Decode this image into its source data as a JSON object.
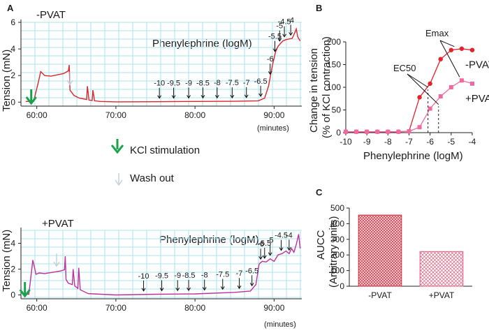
{
  "panel_labels": {
    "a": "A",
    "b": "B",
    "c": "C"
  },
  "colors": {
    "trace_top": "#d9262a",
    "trace_bottom": "#c0309a",
    "minus_pvat": "#e8202a",
    "plus_pvat": "#f06aa0",
    "kcl_arrow": "#1aa24a",
    "washout_arrow": "#c6d2d8",
    "grid": "#a9e3ee"
  },
  "legend_area": {
    "kcl_label": "KCl stimulation",
    "washout_label": "Wash out"
  },
  "chart_data": [
    {
      "id": "trace_minus",
      "type": "line",
      "condition_label": "-PVAT",
      "phenyl_label": "Phenylephrine (logM)",
      "ylabel": "Tension (mN)",
      "xunit": "(minutes)",
      "xlim": [
        58,
        93.5
      ],
      "ylim": [
        -0.3,
        6
      ],
      "xticks": [
        "60:00",
        "70:00",
        "80:00",
        "90:00"
      ],
      "xtick_values": [
        60,
        70,
        80,
        90
      ],
      "yticks": [
        "0",
        "2",
        "4",
        "6"
      ],
      "ytick_values": [
        0,
        2,
        4,
        6
      ],
      "grid": true,
      "doses": [
        "-10",
        "-9.5",
        "-9",
        "-8.5",
        "-8",
        "-7.5",
        "-7",
        "-6.5",
        "-6",
        "-5.5",
        "-5",
        "-4.5",
        "-4"
      ],
      "dose_times": [
        75.5,
        77.3,
        79.2,
        81.0,
        82.8,
        84.7,
        86.5,
        88.3,
        89.5,
        90.1,
        90.7,
        91.3,
        92.1
      ],
      "kcl_time": 59.3,
      "washout_time": 64.2,
      "x": [
        58.6,
        59.6,
        60.2,
        60.5,
        61.0,
        61.8,
        62.6,
        63.4,
        64.0,
        64.1,
        64.2,
        64.7,
        65.4,
        66.3,
        66.4,
        66.6,
        67.0,
        67.1,
        67.3,
        68.0,
        70.0,
        75.0,
        80.0,
        85.0,
        88.0,
        88.8,
        89.3,
        89.8,
        90.2,
        90.5,
        90.8,
        91.1,
        91.5,
        91.9,
        92.3,
        92.6,
        92.8,
        93.0,
        93.3
      ],
      "y": [
        0.05,
        0.05,
        1.5,
        2.3,
        2.0,
        1.95,
        2.05,
        2.15,
        2.35,
        2.8,
        0.9,
        0.5,
        0.3,
        0.2,
        1.2,
        0.15,
        0.12,
        0.9,
        0.1,
        0.05,
        0.02,
        0.03,
        0.05,
        0.06,
        0.1,
        0.3,
        1.2,
        2.8,
        3.8,
        4.2,
        4.4,
        4.6,
        4.7,
        4.75,
        4.8,
        5.2,
        5.5,
        4.9,
        4.6
      ]
    },
    {
      "id": "trace_plus",
      "type": "line",
      "condition_label": "+PVAT",
      "phenyl_label": "Phenylephrine (logM)",
      "ylabel": "Tension (mN)",
      "xunit": "(minutes)",
      "xlim": [
        58,
        93.5
      ],
      "ylim": [
        -0.3,
        5
      ],
      "xticks": [
        "60:00",
        "70:00",
        "80:00",
        "90:00"
      ],
      "xtick_values": [
        60,
        70,
        80,
        90
      ],
      "yticks": [
        "0",
        "2",
        "4"
      ],
      "ytick_values": [
        0,
        2,
        4
      ],
      "grid": true,
      "doses": [
        "-10",
        "-9.5",
        "-9",
        "-8.5",
        "-8",
        "-7.5",
        "-7",
        "-6.5",
        "-6",
        "-5.5",
        "-5",
        "-4.5",
        "-4"
      ],
      "dose_times": [
        73.5,
        75.8,
        77.8,
        79.2,
        81.2,
        83.5,
        85.6,
        87.2,
        88.3,
        88.8,
        89.5,
        90.9,
        91.9
      ],
      "kcl_time": 58.5,
      "washout_time": 62.5,
      "x": [
        58.6,
        59.0,
        59.5,
        59.9,
        60.3,
        61.0,
        62.0,
        63.0,
        63.5,
        63.6,
        63.7,
        64.0,
        64.5,
        64.6,
        64.8,
        65.2,
        65.3,
        65.5,
        66.5,
        70.0,
        75.0,
        80.0,
        85.0,
        87.0,
        87.7,
        88.1,
        88.5,
        89.0,
        89.5,
        90.0,
        90.5,
        91.0,
        91.5,
        91.9,
        92.2,
        92.5,
        92.8,
        93.1,
        93.3
      ],
      "y": [
        0.05,
        0.05,
        2.7,
        1.6,
        1.7,
        1.65,
        1.75,
        1.85,
        1.95,
        3.0,
        1.2,
        0.9,
        0.8,
        2.0,
        0.7,
        0.5,
        2.1,
        0.4,
        0.1,
        0.0,
        0.05,
        0.08,
        0.2,
        0.3,
        0.8,
        2.4,
        2.6,
        2.55,
        2.8,
        2.6,
        3.1,
        3.2,
        3.4,
        3.2,
        3.6,
        3.3,
        3.9,
        4.7,
        3.6
      ]
    },
    {
      "id": "concentration_response",
      "type": "line",
      "xlabel": "Phenylephrine (logM)",
      "ylabel_line1": "Change in tension",
      "ylabel_line2": "(% of KCl contraction)",
      "xlim": [
        -10,
        -4
      ],
      "ylim": [
        0,
        200
      ],
      "xticks": [
        "-10",
        "-9",
        "-8",
        "-7",
        "-6",
        "-5",
        "-4"
      ],
      "xtick_values": [
        -10,
        -9,
        -8,
        -7,
        -6,
        -5,
        -4
      ],
      "yticks": [
        "0",
        "50",
        "100",
        "150",
        "200"
      ],
      "ytick_values": [
        0,
        50,
        100,
        150,
        200
      ],
      "grid": false,
      "series": [
        {
          "name": "-PVAT",
          "marker": "circle",
          "x": [
            -10,
            -9.5,
            -9,
            -8.5,
            -8,
            -7.5,
            -7,
            -6.5,
            -6,
            -5.5,
            -5,
            -4.5,
            -4
          ],
          "values": [
            2,
            2,
            2,
            2,
            2,
            2,
            3,
            78,
            108,
            162,
            182,
            185,
            182
          ]
        },
        {
          "name": "+PVAT",
          "marker": "square",
          "x": [
            -10,
            -9.5,
            -9,
            -8.5,
            -8,
            -7.5,
            -7,
            -6.5,
            -6,
            -5.5,
            -5,
            -4.5,
            -4
          ],
          "values": [
            2,
            2,
            2,
            2,
            2,
            2,
            3,
            12,
            53,
            80,
            100,
            115,
            108
          ]
        }
      ],
      "annotations": {
        "emax": "Emax",
        "ec50": "EC50"
      },
      "ec50_x": [
        -6.1,
        -5.6
      ]
    },
    {
      "id": "aucc",
      "type": "bar",
      "ylabel_line1": "AUCC",
      "ylabel_line2": "(Arbitrary units)",
      "categories": [
        "-PVAT",
        "+PVAT"
      ],
      "values": [
        455,
        222
      ],
      "ylim": [
        0,
        500
      ],
      "yticks": [
        "0",
        "100",
        "200",
        "300",
        "400",
        "500"
      ],
      "ytick_values": [
        0,
        100,
        200,
        300,
        400,
        500
      ],
      "grid": false
    }
  ]
}
